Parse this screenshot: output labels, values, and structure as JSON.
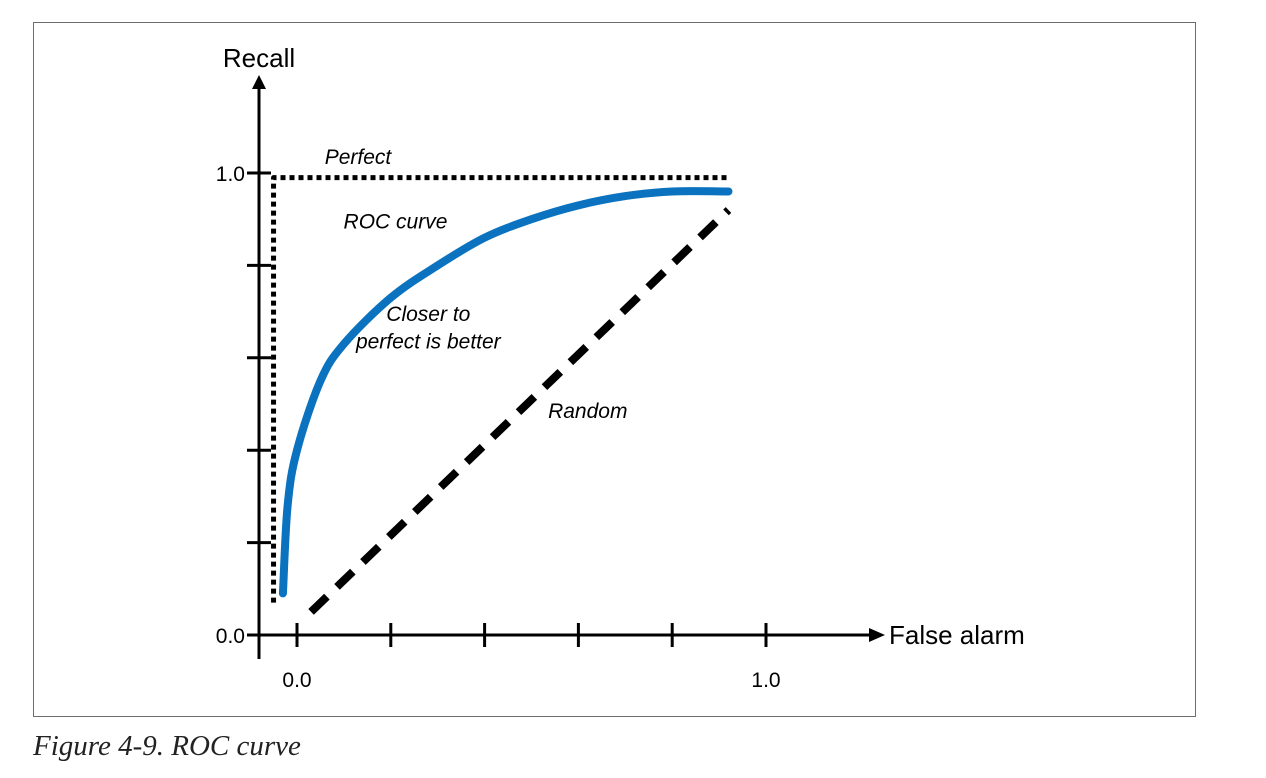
{
  "figure": {
    "caption": "Figure 4-9. ROC curve"
  },
  "chart_data": {
    "type": "line",
    "xlabel": "False alarm",
    "ylabel": "Recall",
    "xlim": [
      0.0,
      1.0
    ],
    "ylim": [
      0.0,
      1.0
    ],
    "x_tick_labels": [
      "0.0",
      "1.0"
    ],
    "y_tick_labels": [
      "0.0",
      "1.0"
    ],
    "x_minor_ticks": [
      0.2,
      0.4,
      0.6,
      0.8
    ],
    "y_minor_ticks": [
      0.2,
      0.4,
      0.6,
      0.8
    ],
    "grid": false,
    "series": [
      {
        "name": "Perfect",
        "style": "dotted",
        "color": "#000000",
        "x": [
          -0.05,
          -0.05,
          0.92
        ],
        "y": [
          0.07,
          0.99,
          0.99
        ]
      },
      {
        "name": "ROC curve",
        "style": "solid",
        "color": "#0A72BF",
        "x": [
          -0.03,
          -0.02,
          0.0,
          0.05,
          0.1,
          0.2,
          0.3,
          0.4,
          0.5,
          0.6,
          0.7,
          0.8,
          0.92
        ],
        "y": [
          0.09,
          0.28,
          0.4,
          0.55,
          0.63,
          0.73,
          0.8,
          0.86,
          0.9,
          0.93,
          0.95,
          0.96,
          0.96
        ]
      },
      {
        "name": "Random",
        "style": "dashed",
        "color": "#000000",
        "x": [
          0.03,
          0.92
        ],
        "y": [
          0.05,
          0.92
        ]
      }
    ],
    "annotations": [
      {
        "text": "Perfect",
        "x": 0.13,
        "y": 1.02
      },
      {
        "text": "ROC curve",
        "x": 0.21,
        "y": 0.88
      },
      {
        "text": "Closer to",
        "x": 0.28,
        "y": 0.68
      },
      {
        "text": "perfect is better",
        "x": 0.28,
        "y": 0.62
      },
      {
        "text": "Random",
        "x": 0.62,
        "y": 0.47
      }
    ]
  }
}
